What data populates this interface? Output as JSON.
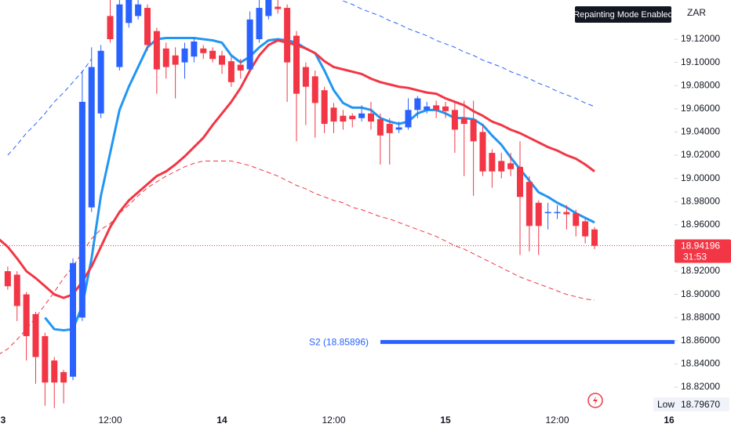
{
  "chart_data": {
    "type": "candlestick",
    "symbol": "ZAR",
    "badge": "Repainting Mode Enabled",
    "categories": [
      "3",
      null,
      null,
      null,
      null,
      null,
      null,
      null,
      null,
      null,
      null,
      null,
      "12:00",
      null,
      null,
      null,
      null,
      null,
      null,
      null,
      null,
      null,
      null,
      null,
      "14",
      null,
      null,
      null,
      null,
      null,
      null,
      null,
      null,
      null,
      null,
      null,
      "12:00",
      null,
      null,
      null,
      null,
      null,
      null,
      null,
      null,
      null,
      null,
      null,
      "15",
      null,
      null,
      null,
      null,
      null,
      null,
      null,
      null,
      null,
      null,
      null,
      "12:00",
      null,
      null,
      null,
      null,
      null,
      null,
      null,
      null,
      null,
      null,
      null,
      "16"
    ],
    "open": [
      null,
      18.92,
      18.917,
      18.9,
      18.883,
      18.864,
      18.843,
      18.833,
      18.829,
      18.88,
      18.975,
      19.056,
      19.14,
      19.096,
      19.134,
      19.14,
      19.147,
      19.127,
      19.112,
      19.106,
      19.1,
      19.105,
      19.112,
      19.11,
      19.106,
      19.101,
      19.098,
      19.094,
      19.12,
      19.14,
      19.148,
      19.147,
      19.123,
      19.096,
      19.088,
      19.076,
      19.061,
      19.054,
      19.054,
      19.052,
      19.056,
      19.051,
      19.047,
      19.042,
      19.044,
      19.059,
      19.059,
      19.063,
      19.062,
      19.059,
      19.052,
      19.051,
      19.04,
      19.022,
      19.015,
      19.013,
      19.01,
      18.997,
      18.979,
      18.97,
      18.97,
      18.971,
      18.97,
      18.963,
      18.956,
      null,
      null,
      null,
      null,
      null,
      null,
      null,
      null
    ],
    "high": [
      null,
      18.924,
      18.92,
      18.902,
      18.885,
      18.867,
      18.846,
      18.835,
      18.931,
      19.093,
      19.113,
      19.115,
      19.154,
      19.161,
      19.167,
      19.161,
      19.15,
      19.13,
      19.117,
      19.113,
      19.117,
      19.121,
      19.115,
      19.113,
      19.11,
      19.105,
      19.103,
      19.144,
      19.154,
      19.161,
      19.154,
      19.15,
      19.127,
      19.1,
      19.093,
      19.079,
      19.065,
      19.059,
      19.056,
      19.063,
      19.066,
      19.056,
      19.052,
      19.049,
      19.069,
      19.071,
      19.066,
      19.067,
      19.066,
      19.065,
      19.067,
      19.067,
      19.046,
      19.025,
      19.022,
      19.022,
      19.032,
      19.002,
      18.981,
      18.979,
      18.977,
      18.977,
      18.973,
      18.965,
      18.958,
      null,
      null,
      null,
      null,
      null,
      null,
      null,
      null
    ],
    "low": [
      null,
      18.904,
      18.877,
      18.843,
      18.823,
      18.804,
      18.802,
      18.806,
      18.826,
      18.877,
      18.971,
      19.052,
      19.117,
      19.093,
      19.13,
      19.137,
      19.11,
      19.073,
      19.086,
      19.069,
      19.086,
      19.1,
      19.103,
      19.1,
      19.09,
      19.079,
      19.086,
      19.093,
      19.117,
      19.137,
      19.142,
      19.066,
      19.032,
      19.046,
      19.035,
      19.039,
      19.039,
      19.042,
      19.044,
      19.049,
      19.042,
      19.012,
      19.012,
      19.039,
      19.042,
      19.052,
      19.056,
      19.052,
      19.052,
      19.022,
      19.002,
      18.985,
      19.002,
      18.992,
      19.0,
      19.002,
      18.934,
      18.937,
      18.934,
      18.956,
      18.965,
      18.956,
      18.95,
      18.944,
      18.939,
      null,
      null,
      null,
      null,
      null,
      null,
      null,
      null
    ],
    "close": [
      null,
      18.907,
      18.89,
      18.864,
      18.846,
      18.824,
      18.824,
      18.824,
      18.927,
      19.066,
      19.096,
      19.11,
      19.12,
      19.15,
      19.157,
      19.15,
      19.115,
      19.094,
      19.096,
      19.098,
      19.112,
      19.118,
      19.108,
      19.103,
      19.098,
      19.083,
      19.093,
      19.137,
      19.147,
      19.154,
      19.146,
      19.1,
      19.073,
      19.079,
      19.065,
      19.047,
      19.049,
      19.049,
      19.051,
      19.056,
      19.049,
      19.037,
      19.039,
      19.044,
      19.059,
      19.069,
      19.062,
      19.059,
      19.058,
      19.042,
      19.047,
      19.032,
      19.006,
      19.006,
      19.006,
      19.008,
      18.984,
      18.959,
      18.959,
      18.971,
      18.971,
      18.969,
      18.959,
      18.95,
      18.94196,
      null,
      null,
      null,
      null,
      null,
      null,
      null,
      null
    ],
    "up_color": "#2962ff",
    "down_color": "#f23645",
    "series": [
      {
        "color": "#2196f3",
        "width": 3,
        "dashed": false,
        "values": [
          null,
          null,
          null,
          null,
          null,
          18.88,
          18.87,
          18.869,
          18.87,
          18.89,
          18.931,
          18.985,
          19.022,
          19.059,
          19.079,
          19.096,
          19.113,
          19.12,
          19.121,
          19.121,
          19.121,
          19.121,
          19.12,
          19.119,
          19.117,
          19.106,
          19.1,
          19.105,
          19.113,
          19.119,
          19.12,
          19.119,
          19.117,
          19.112,
          19.108,
          19.093,
          19.076,
          19.065,
          19.061,
          19.061,
          19.059,
          19.052,
          19.049,
          19.047,
          19.049,
          19.056,
          19.059,
          19.059,
          19.056,
          19.052,
          19.052,
          19.051,
          19.046,
          19.037,
          19.029,
          19.018,
          19.008,
          18.998,
          18.988,
          18.984,
          18.979,
          18.975,
          18.97,
          18.966,
          18.962,
          null,
          null,
          null,
          null,
          null,
          null,
          null,
          null
        ]
      },
      {
        "color": "#f23645",
        "width": 3,
        "dashed": false,
        "values": [
          18.948,
          18.941,
          18.931,
          18.92,
          18.914,
          18.907,
          18.9,
          18.897,
          18.9,
          18.911,
          18.924,
          18.941,
          18.958,
          18.971,
          18.981,
          18.988,
          18.995,
          19.002,
          19.006,
          19.012,
          19.019,
          19.027,
          19.035,
          19.046,
          19.056,
          19.066,
          19.078,
          19.093,
          19.106,
          19.115,
          19.119,
          19.117,
          19.115,
          19.112,
          19.108,
          19.101,
          19.096,
          19.094,
          19.092,
          19.09,
          19.086,
          19.083,
          19.081,
          19.079,
          19.078,
          19.076,
          19.074,
          19.073,
          19.069,
          19.066,
          19.063,
          19.058,
          19.054,
          19.049,
          19.046,
          19.042,
          19.039,
          19.035,
          19.031,
          19.027,
          19.024,
          19.02,
          19.017,
          19.012,
          19.006,
          null,
          null,
          null,
          null,
          null,
          null,
          null,
          null
        ]
      },
      {
        "color": "#2962ff",
        "width": 1,
        "dashed": true,
        "values": [
          null,
          19.02,
          19.029,
          19.039,
          19.047,
          19.056,
          19.066,
          19.074,
          19.083,
          19.092,
          19.103,
          null,
          null,
          null,
          null,
          null,
          null,
          null,
          null,
          null,
          null,
          null,
          null,
          null,
          null,
          null,
          null,
          null,
          null,
          null,
          null,
          null,
          null,
          null,
          null,
          null,
          null,
          19.153,
          19.15,
          19.146,
          19.143,
          19.14,
          19.136,
          19.133,
          19.129,
          19.126,
          19.123,
          19.119,
          19.116,
          19.113,
          19.109,
          19.106,
          19.102,
          19.099,
          19.096,
          19.092,
          19.089,
          19.086,
          19.082,
          19.079,
          19.075,
          19.072,
          19.069,
          19.065,
          19.062,
          null,
          null,
          null,
          null,
          null,
          null,
          null,
          null
        ]
      },
      {
        "color": "#f23645",
        "width": 1,
        "dashed": true,
        "values": [
          18.848,
          18.853,
          18.861,
          18.87,
          18.88,
          18.891,
          18.902,
          18.914,
          18.924,
          18.936,
          18.948,
          18.956,
          18.961,
          18.97,
          18.977,
          18.985,
          18.992,
          18.997,
          19.002,
          19.006,
          19.01,
          19.013,
          19.015,
          19.015,
          19.015,
          19.015,
          19.013,
          19.011,
          19.008,
          19.005,
          19.002,
          18.998,
          18.994,
          18.991,
          18.987,
          18.984,
          18.981,
          18.979,
          18.975,
          18.973,
          18.97,
          18.967,
          18.965,
          18.962,
          18.959,
          18.956,
          18.953,
          18.95,
          18.946,
          18.942,
          18.939,
          18.935,
          18.931,
          18.927,
          18.923,
          18.919,
          18.915,
          18.912,
          18.909,
          18.906,
          18.903,
          18.9,
          18.898,
          18.896,
          18.895,
          null,
          null,
          null,
          null,
          null,
          null,
          null,
          null
        ]
      }
    ],
    "ylim": [
      18.7991,
      19.1538
    ],
    "yticks": [
      {
        "value": 18.82,
        "label": "18.82000"
      },
      {
        "value": 18.84,
        "label": "18.84000"
      },
      {
        "value": 18.86,
        "label": "18.86000"
      },
      {
        "value": 18.88,
        "label": "18.88000"
      },
      {
        "value": 18.9,
        "label": "18.90000"
      },
      {
        "value": 18.92,
        "label": "18.92000"
      },
      {
        "value": 18.94,
        "label": "18.94000"
      },
      {
        "value": 18.96,
        "label": "18.96000"
      },
      {
        "value": 18.98,
        "label": "18.98000"
      },
      {
        "value": 19.0,
        "label": "19.00000"
      },
      {
        "value": 19.02,
        "label": "19.02000"
      },
      {
        "value": 19.04,
        "label": "19.04000"
      },
      {
        "value": 19.06,
        "label": "19.06000"
      },
      {
        "value": 19.08,
        "label": "19.08000"
      },
      {
        "value": 19.1,
        "label": "19.10000"
      },
      {
        "value": 19.12,
        "label": "19.12000"
      }
    ],
    "grid": false,
    "last_price": 18.94196,
    "countdown": "31:53",
    "last_color": "#f23645",
    "levels": [
      {
        "label": "S2 (18.85896)",
        "value": 18.85896,
        "color": "#2962ff"
      }
    ],
    "session_low": {
      "name": "Low",
      "value": 18.7967,
      "label": "18.79670"
    }
  }
}
